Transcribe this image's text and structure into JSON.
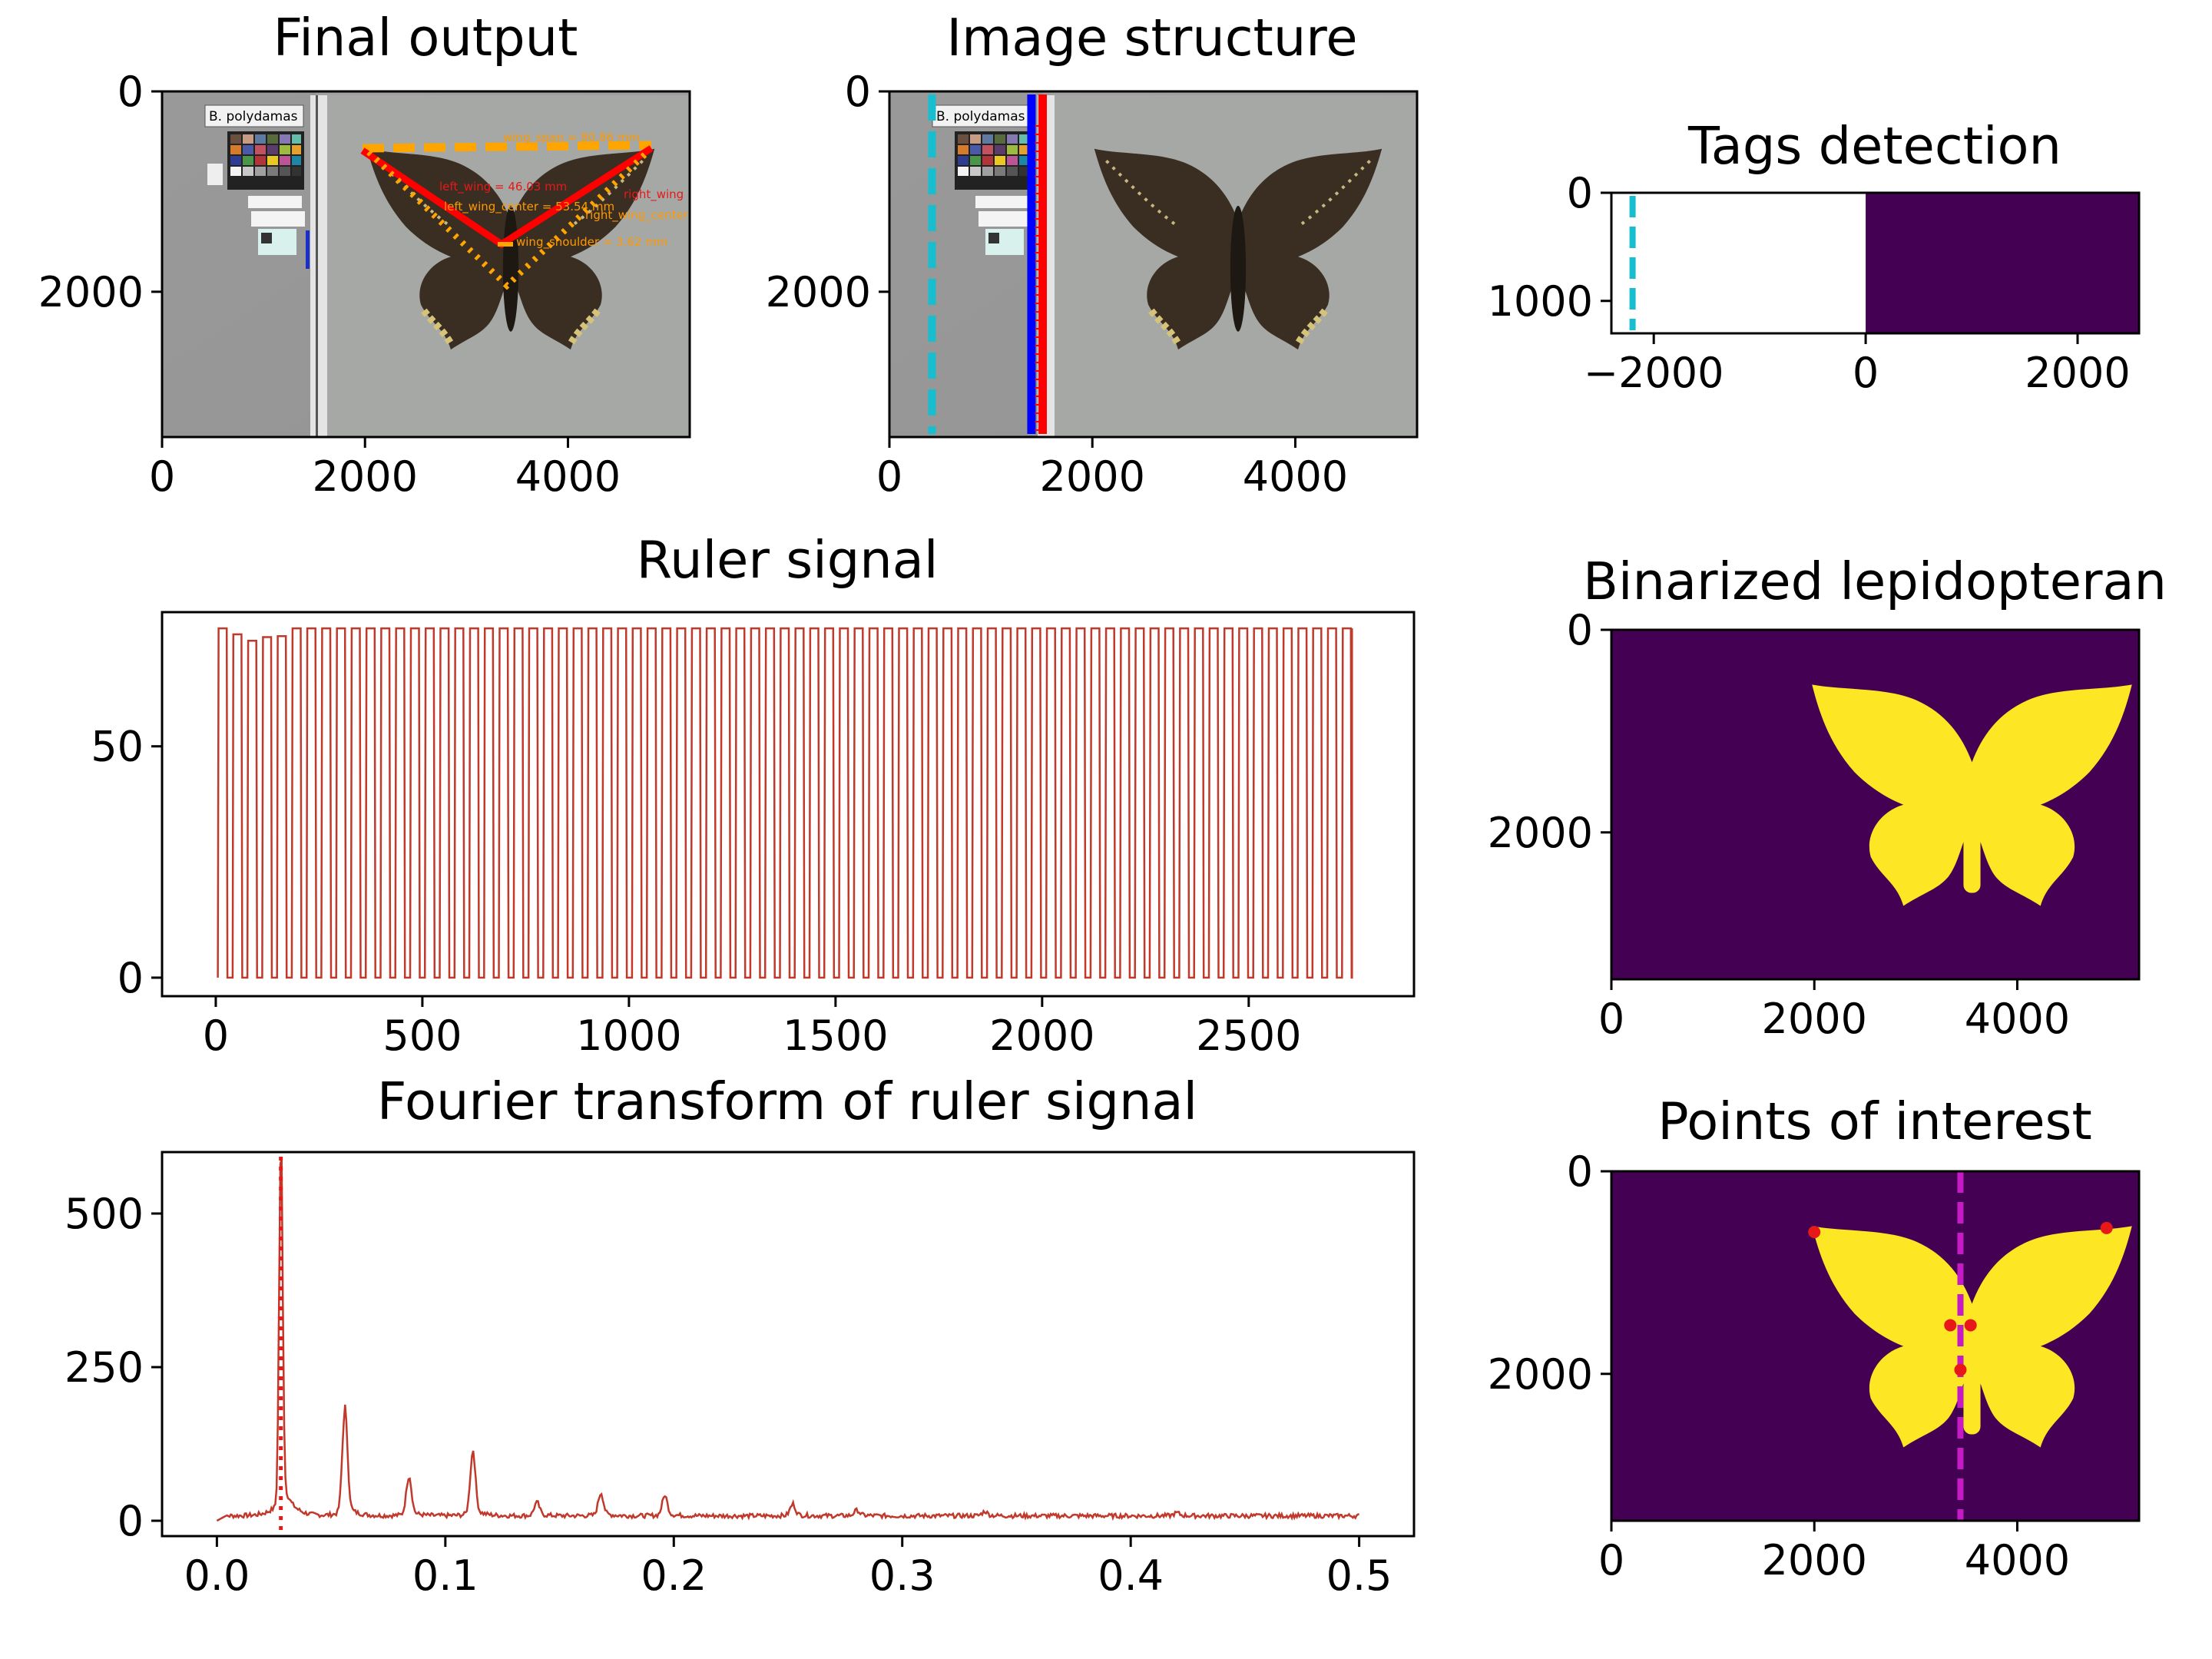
{
  "chart_data": [
    {
      "id": "final",
      "type": "image",
      "title": "Final output",
      "xticks": [
        0,
        2000,
        4000
      ],
      "yticks": [
        0,
        2000
      ],
      "xlim": [
        0,
        5200
      ],
      "ylim": [
        3450,
        0
      ],
      "specimen_label": "B. polydamas",
      "annotations": [
        {
          "text": "wing_span = 80.86 mm",
          "color": "#ff9900"
        },
        {
          "text": "left_wing = 46.03 mm",
          "color": "#e81818"
        },
        {
          "text": "right_wing = 45.87 mm",
          "color": "#e81818"
        },
        {
          "text": "left_wing_center = 53.54 mm",
          "color": "#ff9900"
        },
        {
          "text": "right_wing_center = 55.3 mm",
          "color": "#ff9900"
        },
        {
          "text": "wing_shoulder = 3.62 mm",
          "color": "#ff9900"
        }
      ],
      "points_of_interest": {
        "left_tip": [
          2000,
          590
        ],
        "right_tip": [
          4880,
          560
        ],
        "left_shoulder": [
          3320,
          1520
        ],
        "right_shoulder": [
          3520,
          1520
        ],
        "center": [
          3420,
          1500
        ],
        "body_bottom": [
          3420,
          1920
        ]
      }
    },
    {
      "id": "structure",
      "type": "image",
      "title": "Image structure",
      "xticks": [
        0,
        2000,
        4000
      ],
      "yticks": [
        0,
        2000
      ],
      "xlim": [
        0,
        5200
      ],
      "ylim": [
        3450,
        0
      ],
      "specimen_label": "B. polydamas",
      "lines": [
        {
          "x": 420,
          "style": "dashed",
          "color": "#17becf"
        },
        {
          "x": 1400,
          "style": "solid",
          "color": "#0000ff"
        },
        {
          "x": 1510,
          "style": "solid",
          "color": "#ff0000"
        }
      ]
    },
    {
      "id": "tags",
      "type": "heatmap",
      "title": "Tags detection",
      "xticks": [
        -2000,
        0,
        2000
      ],
      "yticks": [
        0,
        1000
      ],
      "xlim": [
        -2400,
        2580
      ],
      "ylim": [
        1300,
        0
      ],
      "filled_region": {
        "x": [
          0,
          2580
        ],
        "y": [
          0,
          1300
        ],
        "color": "#440154"
      },
      "marker_line": {
        "x": -2200,
        "style": "dashed",
        "color": "#17becf"
      }
    },
    {
      "id": "ruler",
      "type": "line",
      "title": "Ruler signal",
      "xticks": [
        0,
        500,
        1000,
        1500,
        2000,
        2500
      ],
      "yticks": [
        0,
        50
      ],
      "xlim": [
        -130,
        2900
      ],
      "ylim": [
        -4,
        79
      ],
      "color": "#c0392b",
      "signal": {
        "start": 5,
        "end": 2750,
        "period": 35.8,
        "duty": 0.6,
        "low": 0,
        "high": 75.5,
        "first_peaks": [
          75.5,
          74.2,
          72.8,
          73.6,
          73.8
        ]
      }
    },
    {
      "id": "binarized",
      "type": "image",
      "title": "Binarized lepidopteran",
      "xticks": [
        0,
        2000,
        4000
      ],
      "yticks": [
        0,
        2000
      ],
      "xlim": [
        0,
        5200
      ],
      "ylim": [
        3450,
        0
      ],
      "background": "#440154",
      "foreground": "#fde725"
    },
    {
      "id": "fourier",
      "type": "line",
      "title": "Fourier transform of ruler signal",
      "xticks": [
        0.0,
        0.1,
        0.2,
        0.3,
        0.4,
        0.5
      ],
      "yticks": [
        0,
        250,
        500
      ],
      "xlim": [
        -0.024,
        0.524
      ],
      "ylim": [
        -25,
        600
      ],
      "color": "#c0392b",
      "peaks": [
        {
          "x": 0.028,
          "y": 575
        },
        {
          "x": 0.056,
          "y": 168
        },
        {
          "x": 0.084,
          "y": 68
        },
        {
          "x": 0.112,
          "y": 105
        },
        {
          "x": 0.14,
          "y": 28
        },
        {
          "x": 0.168,
          "y": 42
        },
        {
          "x": 0.196,
          "y": 38
        },
        {
          "x": 0.252,
          "y": 25
        },
        {
          "x": 0.28,
          "y": 16
        },
        {
          "x": 0.336,
          "y": 14
        },
        {
          "x": 0.42,
          "y": 12
        }
      ],
      "baseline": 8,
      "x_range": [
        0.0,
        0.5
      ],
      "vline": {
        "x": 0.028,
        "style": "dotted",
        "color": "#e81818"
      }
    },
    {
      "id": "poi",
      "type": "image",
      "title": "Points of interest",
      "xticks": [
        0,
        2000,
        4000
      ],
      "yticks": [
        0,
        2000
      ],
      "xlim": [
        0,
        5200
      ],
      "ylim": [
        3450,
        0
      ],
      "background": "#440154",
      "foreground": "#fde725",
      "vline": {
        "x": 3440,
        "style": "dashed",
        "color": "#c61ac6"
      },
      "points": [
        {
          "x": 2000,
          "y": 600
        },
        {
          "x": 4880,
          "y": 560
        },
        {
          "x": 3340,
          "y": 1520
        },
        {
          "x": 3540,
          "y": 1520
        },
        {
          "x": 3440,
          "y": 1960
        }
      ],
      "point_color": "#e81818"
    }
  ]
}
